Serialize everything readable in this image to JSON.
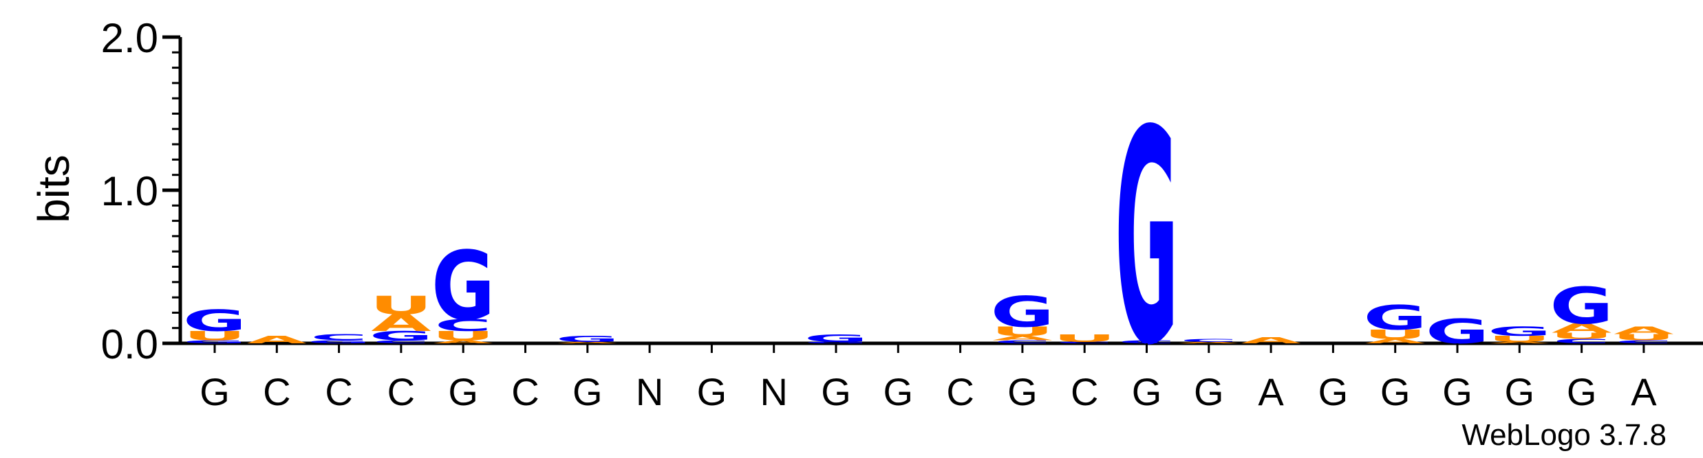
{
  "chart_data": {
    "type": "sequence-logo",
    "ylabel": "bits",
    "ylim": [
      0,
      2.0
    ],
    "yticks": [
      "0.0",
      "1.0",
      "2.0"
    ],
    "credit": "WebLogo 3.7.8",
    "consensus": [
      "G",
      "C",
      "C",
      "C",
      "G",
      "C",
      "G",
      "N",
      "G",
      "N",
      "G",
      "G",
      "C",
      "G",
      "C",
      "G",
      "G",
      "A",
      "G",
      "G",
      "G",
      "G",
      "G",
      "A"
    ],
    "colors": {
      "G": "#0000ff",
      "C": "#0000ff",
      "A": "#ff8c00",
      "U": "#ff8c00",
      "N": "#000000"
    },
    "positions": [
      {
        "stack": [
          [
            "G",
            0.02
          ],
          [
            "U",
            0.06
          ],
          [
            "G",
            0.14
          ]
        ]
      },
      {
        "stack": [
          [
            "A",
            0.05
          ]
        ]
      },
      {
        "stack": [
          [
            "G",
            0.02
          ],
          [
            "C",
            0.04
          ]
        ]
      },
      {
        "stack": [
          [
            "C",
            0.02
          ],
          [
            "G",
            0.06
          ],
          [
            "A",
            0.11
          ],
          [
            "U",
            0.12
          ]
        ]
      },
      {
        "stack": [
          [
            "A",
            0.02
          ],
          [
            "U",
            0.06
          ],
          [
            "C",
            0.08
          ],
          [
            "G",
            0.45
          ]
        ]
      },
      {
        "stack": []
      },
      {
        "stack": [
          [
            "A",
            0.01
          ],
          [
            "G",
            0.04
          ]
        ]
      },
      {
        "stack": []
      },
      {
        "stack": []
      },
      {
        "stack": []
      },
      {
        "stack": [
          [
            "G",
            0.01
          ],
          [
            "G",
            0.05
          ]
        ]
      },
      {
        "stack": []
      },
      {
        "stack": []
      },
      {
        "stack": [
          [
            "C",
            0.02
          ],
          [
            "A",
            0.03
          ],
          [
            "U",
            0.06
          ],
          [
            "G",
            0.2
          ]
        ]
      },
      {
        "stack": [
          [
            "C",
            0.01
          ],
          [
            "U",
            0.05
          ]
        ]
      },
      {
        "stack": [
          [
            "C",
            0.02
          ],
          [
            "G",
            1.4
          ]
        ]
      },
      {
        "stack": [
          [
            "A",
            0.01
          ],
          [
            "C",
            0.02
          ]
        ]
      },
      {
        "stack": [
          [
            "A",
            0.04
          ]
        ]
      },
      {
        "stack": []
      },
      {
        "stack": [
          [
            "A",
            0.03
          ],
          [
            "U",
            0.06
          ],
          [
            "G",
            0.16
          ]
        ]
      },
      {
        "stack": [
          [
            "G",
            0.16
          ]
        ]
      },
      {
        "stack": [
          [
            "A",
            0.01
          ],
          [
            "U",
            0.04
          ],
          [
            "G",
            0.06
          ]
        ]
      },
      {
        "stack": [
          [
            "C",
            0.03
          ],
          [
            "U",
            0.04
          ],
          [
            "A",
            0.06
          ],
          [
            "G",
            0.24
          ]
        ]
      },
      {
        "stack": [
          [
            "C",
            0.02
          ],
          [
            "U",
            0.04
          ],
          [
            "A",
            0.05
          ]
        ]
      }
    ]
  }
}
